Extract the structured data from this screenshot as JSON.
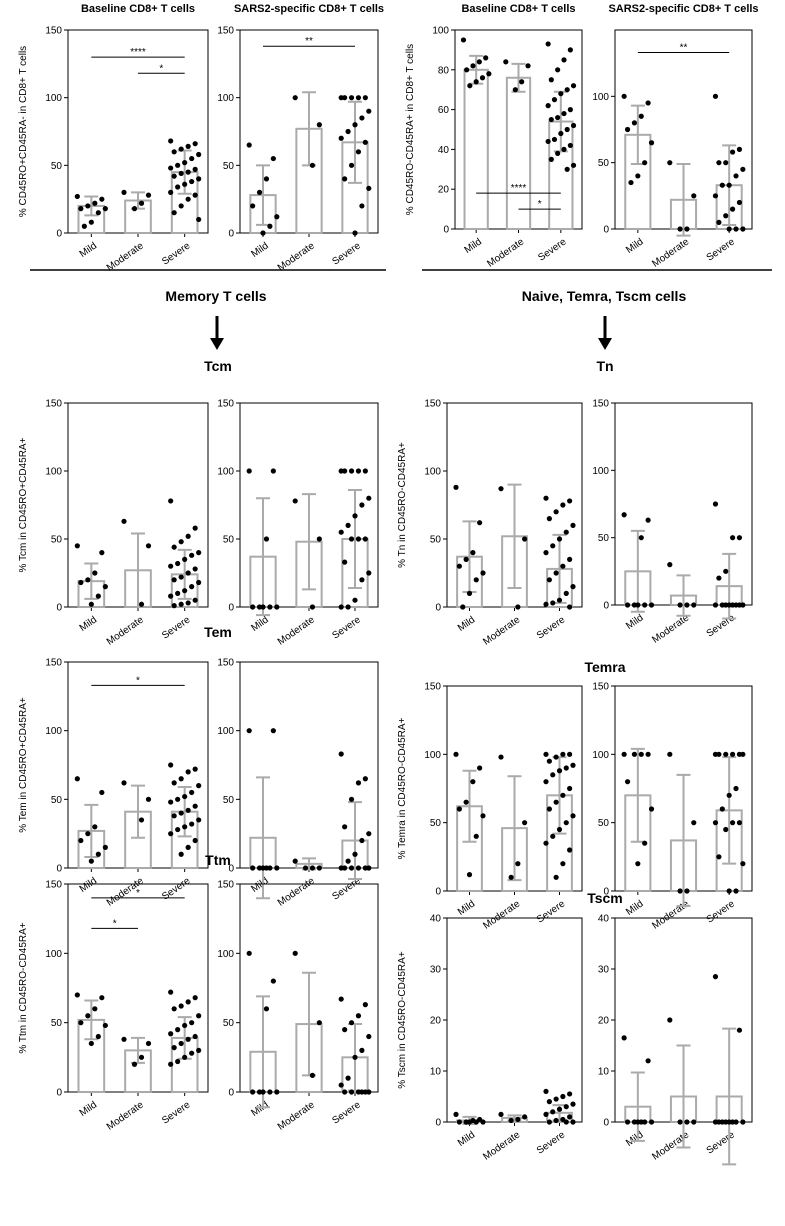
{
  "labels": {
    "memory": "Memory T cells",
    "naive": "Naive, Temra, Tscm cells",
    "tcm": "Tcm",
    "tn": "Tn",
    "tem": "Tem",
    "temra": "Temra",
    "ttm": "Ttm",
    "tscm": "Tscm"
  },
  "chart_data": [
    {
      "type": "dotbar",
      "title": "Baseline CD8+ T cells",
      "ylabel": "% CD45RO+CD45RA- in CD8+ T cells",
      "categories": [
        "Mild",
        "Moderate",
        "Severe"
      ],
      "ylim": [
        0,
        150
      ],
      "yticks": [
        0,
        50,
        100,
        150
      ],
      "means": [
        20,
        24,
        45
      ],
      "errors": [
        7,
        6,
        16
      ],
      "points": [
        [
          27,
          25,
          22,
          20,
          18,
          18,
          15,
          8,
          5
        ],
        [
          30,
          28,
          22,
          18
        ],
        [
          68,
          66,
          64,
          62,
          60,
          58,
          55,
          52,
          50,
          48,
          47,
          45,
          44,
          42,
          40,
          38,
          36,
          34,
          30,
          28,
          25,
          20,
          15,
          10
        ]
      ],
      "annotations": [
        {
          "text": "****",
          "from": 0,
          "to": 2,
          "y": 130
        },
        {
          "text": "*",
          "from": 1,
          "to": 2,
          "y": 118
        }
      ]
    },
    {
      "type": "dotbar",
      "title": "SARS2-specific CD8+ T cells",
      "categories": [
        "Mild",
        "Moderate",
        "Severe"
      ],
      "ylim": [
        0,
        150
      ],
      "yticks": [
        0,
        50,
        100,
        150
      ],
      "means": [
        28,
        77,
        67
      ],
      "errors": [
        22,
        27,
        30
      ],
      "points": [
        [
          65,
          55,
          40,
          30,
          20,
          12,
          5,
          0
        ],
        [
          100,
          80,
          50
        ],
        [
          100,
          100,
          100,
          100,
          100,
          90,
          85,
          80,
          75,
          70,
          67,
          60,
          50,
          40,
          33,
          20,
          0
        ]
      ],
      "annotations": [
        {
          "text": "**",
          "from": 0,
          "to": 2,
          "y": 138
        }
      ]
    },
    {
      "type": "dotbar",
      "title": "Baseline CD8+ T cells",
      "ylabel": "% CD45RO-CD45RA+ in CD8+ T cells",
      "categories": [
        "Mild",
        "Moderate",
        "Severe"
      ],
      "ylim": [
        0,
        100
      ],
      "yticks": [
        0,
        20,
        40,
        60,
        80,
        100
      ],
      "means": [
        80,
        76,
        54
      ],
      "errors": [
        7,
        7,
        15
      ],
      "points": [
        [
          95,
          86,
          84,
          82,
          80,
          78,
          76,
          74,
          72
        ],
        [
          84,
          82,
          74,
          70
        ],
        [
          93,
          90,
          85,
          80,
          75,
          72,
          70,
          68,
          65,
          62,
          60,
          58,
          56,
          55,
          52,
          50,
          48,
          45,
          44,
          42,
          40,
          38,
          35,
          32,
          30
        ]
      ],
      "annotations": [
        {
          "text": "****",
          "from": 0,
          "to": 2,
          "y": 18
        },
        {
          "text": "*",
          "from": 1,
          "to": 2,
          "y": 10
        }
      ]
    },
    {
      "type": "dotbar",
      "title": "SARS2-specific CD8+ T cells",
      "categories": [
        "Mild",
        "Moderate",
        "Severe"
      ],
      "ylim": [
        0,
        150
      ],
      "yticks": [
        0,
        50,
        100
      ],
      "means": [
        71,
        22,
        33
      ],
      "errors": [
        22,
        27,
        30
      ],
      "points": [
        [
          100,
          95,
          85,
          80,
          75,
          65,
          50,
          40,
          35
        ],
        [
          50,
          25,
          0,
          0
        ],
        [
          100,
          60,
          58,
          50,
          50,
          45,
          40,
          33,
          33,
          25,
          20,
          15,
          10,
          5,
          0,
          0,
          0
        ]
      ],
      "annotations": [
        {
          "text": "**",
          "from": 0,
          "to": 2,
          "y": 133
        }
      ]
    },
    {
      "type": "dotbar",
      "ylabel": "% Tcm in CD45RO+CD45RA+",
      "categories": [
        "Mild",
        "Moderate",
        "Severe"
      ],
      "ylim": [
        0,
        150
      ],
      "yticks": [
        0,
        50,
        100,
        150
      ],
      "means": [
        19,
        27,
        24
      ],
      "errors": [
        13,
        27,
        18
      ],
      "points": [
        [
          45,
          40,
          25,
          20,
          18,
          15,
          8,
          2
        ],
        [
          63,
          45,
          2
        ],
        [
          78,
          58,
          52,
          48,
          44,
          40,
          38,
          35,
          32,
          30,
          28,
          25,
          22,
          20,
          18,
          15,
          12,
          10,
          8,
          5,
          3,
          2,
          1
        ]
      ],
      "annotations": []
    },
    {
      "type": "dotbar",
      "categories": [
        "Mild",
        "Moderate",
        "Severe"
      ],
      "ylim": [
        0,
        150
      ],
      "yticks": [
        0,
        50,
        100,
        150
      ],
      "means": [
        37,
        48,
        50
      ],
      "errors": [
        43,
        35,
        36
      ],
      "points": [
        [
          100,
          100,
          50,
          0,
          0,
          0,
          0,
          0
        ],
        [
          78,
          50,
          0
        ],
        [
          100,
          100,
          100,
          100,
          100,
          80,
          75,
          67,
          60,
          55,
          50,
          50,
          50,
          33,
          25,
          20,
          5,
          0,
          0
        ]
      ],
      "annotations": []
    },
    {
      "type": "dotbar",
      "ylabel": "% Tn in CD45RO-CD45RA+",
      "categories": [
        "Mild",
        "Moderate",
        "Severe"
      ],
      "ylim": [
        0,
        150
      ],
      "yticks": [
        0,
        50,
        100,
        150
      ],
      "means": [
        37,
        52,
        28
      ],
      "errors": [
        26,
        38,
        25
      ],
      "points": [
        [
          88,
          62,
          40,
          35,
          30,
          25,
          20,
          10,
          0
        ],
        [
          87,
          50,
          0
        ],
        [
          80,
          78,
          75,
          70,
          65,
          60,
          55,
          50,
          45,
          40,
          35,
          30,
          25,
          20,
          15,
          10,
          5,
          3,
          2,
          0
        ]
      ],
      "annotations": []
    },
    {
      "type": "dotbar",
      "categories": [
        "Mild",
        "Moderate",
        "Severe"
      ],
      "ylim": [
        0,
        150
      ],
      "yticks": [
        0,
        50,
        100,
        150
      ],
      "means": [
        25,
        7,
        14
      ],
      "errors": [
        30,
        15,
        24
      ],
      "points": [
        [
          67,
          63,
          50,
          0,
          0,
          0,
          0,
          0
        ],
        [
          30,
          0,
          0,
          0
        ],
        [
          75,
          50,
          50,
          25,
          20,
          0,
          0,
          0,
          0,
          0,
          0,
          0,
          0
        ]
      ],
      "annotations": []
    },
    {
      "type": "dotbar",
      "ylabel": "% Tem in CD45RO+CD45RA+",
      "categories": [
        "Mild",
        "Moderate",
        "Severe"
      ],
      "ylim": [
        0,
        150
      ],
      "yticks": [
        0,
        50,
        100,
        150
      ],
      "means": [
        27,
        41,
        41
      ],
      "errors": [
        19,
        19,
        18
      ],
      "points": [
        [
          65,
          55,
          30,
          25,
          20,
          15,
          10,
          5
        ],
        [
          62,
          50,
          35
        ],
        [
          75,
          72,
          70,
          65,
          62,
          60,
          55,
          52,
          50,
          48,
          45,
          42,
          40,
          38,
          35,
          32,
          30,
          28,
          25,
          20,
          15,
          10
        ]
      ],
      "annotations": [
        {
          "text": "*",
          "from": 0,
          "to": 2,
          "y": 133
        }
      ]
    },
    {
      "type": "dotbar",
      "categories": [
        "Mild",
        "Moderate",
        "Severe"
      ],
      "ylim": [
        0,
        150
      ],
      "yticks": [
        0,
        50,
        100,
        150
      ],
      "means": [
        22,
        3,
        20
      ],
      "errors": [
        44,
        4,
        28
      ],
      "points": [
        [
          100,
          100,
          0,
          0,
          0,
          0,
          0,
          0
        ],
        [
          5,
          0,
          0,
          0
        ],
        [
          83,
          65,
          62,
          50,
          30,
          25,
          20,
          10,
          5,
          0,
          0,
          0,
          0,
          0,
          0
        ]
      ],
      "annotations": []
    },
    {
      "type": "dotbar",
      "ylabel": "% Temra in CD45RO-CD45RA+",
      "categories": [
        "Mild",
        "Moderate",
        "Severe"
      ],
      "ylim": [
        0,
        150
      ],
      "yticks": [
        0,
        50,
        100,
        150
      ],
      "means": [
        62,
        46,
        70
      ],
      "errors": [
        26,
        38,
        28
      ],
      "points": [
        [
          100,
          90,
          80,
          65,
          60,
          55,
          40,
          12
        ],
        [
          98,
          50,
          20,
          10
        ],
        [
          100,
          100,
          100,
          98,
          95,
          92,
          90,
          88,
          85,
          80,
          75,
          70,
          65,
          60,
          55,
          50,
          45,
          40,
          35,
          30,
          20,
          10
        ]
      ],
      "annotations": []
    },
    {
      "type": "dotbar",
      "categories": [
        "Mild",
        "Moderate",
        "Severe"
      ],
      "ylim": [
        0,
        150
      ],
      "yticks": [
        0,
        50,
        100,
        150
      ],
      "means": [
        70,
        37,
        59
      ],
      "errors": [
        34,
        48,
        39
      ],
      "points": [
        [
          100,
          100,
          100,
          100,
          80,
          60,
          35,
          20
        ],
        [
          100,
          50,
          0,
          0
        ],
        [
          100,
          100,
          100,
          100,
          100,
          100,
          75,
          70,
          60,
          50,
          50,
          50,
          45,
          25,
          20,
          0,
          0
        ]
      ],
      "annotations": []
    },
    {
      "type": "dotbar",
      "ylabel": "% Ttm in CD45RO-CD45RA+",
      "categories": [
        "Mild",
        "Moderate",
        "Severe"
      ],
      "ylim": [
        0,
        150
      ],
      "yticks": [
        0,
        50,
        100,
        150
      ],
      "means": [
        52,
        30,
        39
      ],
      "errors": [
        14,
        9,
        15
      ],
      "points": [
        [
          70,
          68,
          60,
          55,
          50,
          48,
          40,
          35
        ],
        [
          38,
          35,
          25,
          20
        ],
        [
          72,
          68,
          65,
          62,
          60,
          55,
          50,
          48,
          45,
          42,
          40,
          38,
          35,
          32,
          30,
          28,
          25,
          22,
          20
        ]
      ],
      "annotations": [
        {
          "text": "*",
          "from": 0,
          "to": 2,
          "y": 140
        },
        {
          "text": "*",
          "from": 0,
          "to": 1,
          "y": 118
        }
      ]
    },
    {
      "type": "dotbar",
      "categories": [
        "Mild",
        "Moderate",
        "Severe"
      ],
      "ylim": [
        0,
        150
      ],
      "yticks": [
        0,
        50,
        100,
        150
      ],
      "means": [
        29,
        49,
        25
      ],
      "errors": [
        40,
        37,
        24
      ],
      "points": [
        [
          100,
          80,
          60,
          0,
          0,
          0,
          0,
          0
        ],
        [
          100,
          50,
          12
        ],
        [
          67,
          63,
          55,
          50,
          45,
          40,
          30,
          25,
          10,
          5,
          0,
          0,
          0,
          0,
          0,
          0
        ]
      ],
      "annotations": []
    },
    {
      "type": "dotbar",
      "ylabel": "% Tscm in CD45RO-CD45RA+",
      "categories": [
        "Mild",
        "Moderate",
        "Severe"
      ],
      "ylim": [
        0,
        40
      ],
      "yticks": [
        0,
        10,
        20,
        30,
        40
      ],
      "means": [
        0.3,
        0.8,
        1.8
      ],
      "errors": [
        0.7,
        0.5,
        1.5
      ],
      "points": [
        [
          1.5,
          0.5,
          0.3,
          0,
          0,
          0,
          0,
          0
        ],
        [
          1.5,
          1,
          0.5,
          0.3
        ],
        [
          6,
          5.5,
          5,
          4.5,
          4,
          3.5,
          3,
          2.5,
          2,
          1.5,
          1,
          0.5,
          0.3,
          0,
          0,
          0
        ]
      ],
      "annotations": []
    },
    {
      "type": "dotbar",
      "categories": [
        "Mild",
        "Moderate",
        "Severe"
      ],
      "ylim": [
        0,
        40
      ],
      "yticks": [
        0,
        10,
        20,
        30,
        40
      ],
      "means": [
        3,
        5,
        5
      ],
      "errors": [
        6.7,
        10,
        13.3
      ],
      "points": [
        [
          16.5,
          12,
          0,
          0,
          0,
          0,
          0,
          0
        ],
        [
          20,
          0,
          0,
          0
        ],
        [
          28.5,
          18,
          0,
          0,
          0,
          0,
          0,
          0,
          0,
          0
        ]
      ],
      "annotations": []
    }
  ]
}
